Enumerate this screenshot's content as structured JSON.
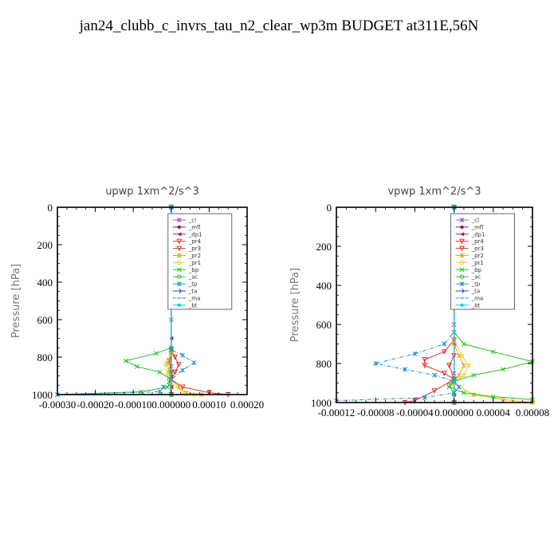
{
  "title": "jan24_clubb_c_invrs_tau_n2_clear_wp3m  BUDGET at311E,56N",
  "chart_data": [
    {
      "type": "line",
      "title": "upwp   1xm^2/s^3",
      "ylabel": "Pressure [hPa]",
      "xlabel": "",
      "xlim": [
        -0.0003,
        0.0002
      ],
      "ylim": [
        1000,
        0
      ],
      "x_tick_labels": [
        "-0.00030",
        "-0.00020",
        "-0.00010",
        "0.000000",
        "0.00010",
        "0.00020"
      ],
      "x_tick_values": [
        -0.0003,
        -0.0002,
        -0.0001,
        0.0,
        0.0001,
        0.0002
      ],
      "y_tick_labels": [
        "0",
        "200",
        "400",
        "600",
        "800",
        "1000"
      ],
      "y_tick_values": [
        0,
        200,
        400,
        600,
        800,
        1000
      ],
      "series": [
        {
          "name": "_cl",
          "color": "#9b59d6",
          "marker": "star",
          "points": [
            [
              0,
              0
            ],
            [
              0,
              600
            ],
            [
              0,
              850
            ],
            [
              0,
              1000
            ]
          ]
        },
        {
          "name": "_mfl",
          "color": "#7a1a7a",
          "marker": "dot",
          "points": [
            [
              0,
              0
            ],
            [
              0,
              500
            ],
            [
              0,
              900
            ],
            [
              0,
              1000
            ]
          ]
        },
        {
          "name": "_dp1",
          "color": "#b0106a",
          "marker": "tri-left",
          "points": [
            [
              0,
              0
            ],
            [
              0,
              700
            ],
            [
              0,
              960
            ],
            [
              0,
              1000
            ]
          ]
        },
        {
          "name": "_pr4",
          "color": "#e23030",
          "marker": "tri-down",
          "points": [
            [
              0,
              0
            ],
            [
              0,
              760
            ],
            [
              1e-05,
              800
            ],
            [
              2e-05,
              840
            ],
            [
              1e-05,
              880
            ],
            [
              0,
              920
            ],
            [
              3e-05,
              960
            ],
            [
              0.0001,
              990
            ],
            [
              0.00015,
              1000
            ]
          ]
        },
        {
          "name": "_pr3",
          "color": "#e23030",
          "marker": "tri-down",
          "points": [
            [
              0,
              0
            ],
            [
              0,
              780
            ],
            [
              -5e-06,
              820
            ],
            [
              0,
              880
            ],
            [
              0,
              1000
            ]
          ]
        },
        {
          "name": "_pr2",
          "color": "#f0a020",
          "marker": "star",
          "points": [
            [
              0,
              0
            ],
            [
              0,
              780
            ],
            [
              -1e-05,
              830
            ],
            [
              -5e-06,
              880
            ],
            [
              0,
              920
            ],
            [
              2e-05,
              960
            ],
            [
              4e-05,
              990
            ],
            [
              8e-05,
              1000
            ]
          ]
        },
        {
          "name": "_pr1",
          "color": "#f0d020",
          "marker": "circle",
          "points": [
            [
              0,
              0
            ],
            [
              0,
              780
            ],
            [
              -1.5e-05,
              840
            ],
            [
              -1e-05,
              890
            ],
            [
              0,
              940
            ],
            [
              3e-05,
              985
            ],
            [
              6e-05,
              1000
            ]
          ]
        },
        {
          "name": "_bp",
          "color": "#20c020",
          "marker": "x",
          "points": [
            [
              0,
              0
            ],
            [
              0,
              750
            ],
            [
              -4e-05,
              780
            ],
            [
              -0.00012,
              820
            ],
            [
              -9e-05,
              850
            ],
            [
              -3e-05,
              880
            ],
            [
              0,
              920
            ],
            [
              -1e-05,
              960
            ],
            [
              -8e-05,
              985
            ],
            [
              -0.0003,
              1000
            ]
          ]
        },
        {
          "name": "_ac",
          "color": "#30c030",
          "marker": "circle",
          "points": [
            [
              0,
              0
            ],
            [
              0,
              880
            ],
            [
              -5e-06,
              920
            ],
            [
              0,
              1000
            ]
          ]
        },
        {
          "name": "_tp",
          "color": "#2090d0",
          "marker": "star",
          "points": [
            [
              0,
              0
            ],
            [
              0,
              760
            ],
            [
              3e-05,
              790
            ],
            [
              6e-05,
              830
            ],
            [
              3e-05,
              870
            ],
            [
              0,
              920
            ],
            [
              -2e-05,
              960
            ],
            [
              -3e-05,
              985
            ],
            [
              -0.0003,
              1000
            ]
          ]
        },
        {
          "name": "_ta",
          "color": "#2040c0",
          "marker": "arrow",
          "points": [
            [
              0,
              0
            ],
            [
              0,
              1000
            ]
          ]
        },
        {
          "name": "_ma",
          "color": "#2090d0",
          "marker": "dash",
          "points": [
            [
              0,
              0
            ],
            [
              0,
              1000
            ]
          ]
        },
        {
          "name": "_bt",
          "color": "#10d0e0",
          "marker": "diamond",
          "points": [
            [
              0,
              0
            ],
            [
              0,
              1000
            ]
          ]
        }
      ]
    },
    {
      "type": "line",
      "title": "vpwp   1xm^2/s^3",
      "ylabel": "Pressure [hPa]",
      "xlabel": "",
      "xlim": [
        -0.00012,
        8e-05
      ],
      "ylim": [
        1000,
        0
      ],
      "x_tick_labels": [
        "-0.00012",
        "-0.00008",
        "-0.00004",
        "0.000000",
        "0.00004",
        "0.00008"
      ],
      "x_tick_values": [
        -0.00012,
        -8e-05,
        -4e-05,
        0.0,
        4e-05,
        8e-05
      ],
      "y_tick_labels": [
        "0",
        "200",
        "400",
        "600",
        "800",
        "1000"
      ],
      "y_tick_values": [
        0,
        200,
        400,
        600,
        800,
        1000
      ],
      "series": [
        {
          "name": "_cl",
          "color": "#9b59d6",
          "marker": "star",
          "points": [
            [
              0,
              0
            ],
            [
              0,
              600
            ],
            [
              0,
              850
            ],
            [
              0,
              1000
            ]
          ]
        },
        {
          "name": "_mfl",
          "color": "#7a1a7a",
          "marker": "dot",
          "points": [
            [
              0,
              0
            ],
            [
              0,
              500
            ],
            [
              0,
              900
            ],
            [
              0,
              1000
            ]
          ]
        },
        {
          "name": "_dp1",
          "color": "#b0106a",
          "marker": "tri-left",
          "points": [
            [
              0,
              0
            ],
            [
              0,
              700
            ],
            [
              0,
              960
            ],
            [
              0,
              1000
            ]
          ]
        },
        {
          "name": "_pr4",
          "color": "#e23030",
          "marker": "tri-down",
          "points": [
            [
              0,
              0
            ],
            [
              0,
              680
            ],
            [
              -1e-05,
              740
            ],
            [
              -3e-05,
              780
            ],
            [
              -3e-05,
              810
            ],
            [
              -1e-05,
              850
            ],
            [
              0,
              880
            ],
            [
              -2e-05,
              940
            ],
            [
              -4e-05,
              990
            ],
            [
              -5e-05,
              1000
            ]
          ]
        },
        {
          "name": "_pr3",
          "color": "#e23030",
          "marker": "tri-down",
          "points": [
            [
              0,
              0
            ],
            [
              0,
              760
            ],
            [
              -5e-06,
              810
            ],
            [
              0,
              880
            ],
            [
              0,
              1000
            ]
          ]
        },
        {
          "name": "_pr2",
          "color": "#f0a020",
          "marker": "star",
          "points": [
            [
              0,
              0
            ],
            [
              0,
              700
            ],
            [
              5e-06,
              760
            ],
            [
              1e-05,
              810
            ],
            [
              5e-06,
              860
            ],
            [
              0,
              900
            ],
            [
              2e-05,
              960
            ],
            [
              5e-05,
              985
            ],
            [
              8e-05,
              1000
            ]
          ]
        },
        {
          "name": "_pr1",
          "color": "#f0d020",
          "marker": "circle",
          "points": [
            [
              0,
              0
            ],
            [
              0,
              680
            ],
            [
              8e-06,
              760
            ],
            [
              1.5e-05,
              810
            ],
            [
              1e-05,
              860
            ],
            [
              0,
              900
            ],
            [
              2e-05,
              960
            ],
            [
              6e-05,
              990
            ],
            [
              8e-05,
              1000
            ]
          ]
        },
        {
          "name": "_bp",
          "color": "#20c020",
          "marker": "x",
          "points": [
            [
              0,
              0
            ],
            [
              0,
              640
            ],
            [
              1e-05,
              700
            ],
            [
              4e-05,
              740
            ],
            [
              8e-05,
              790
            ],
            [
              5e-05,
              830
            ],
            [
              2e-05,
              860
            ],
            [
              0,
              890
            ],
            [
              -5e-06,
              920
            ],
            [
              1e-05,
              950
            ],
            [
              4e-05,
              970
            ],
            [
              8e-05,
              985
            ]
          ]
        },
        {
          "name": "_ac",
          "color": "#30c030",
          "marker": "circle",
          "points": [
            [
              0,
              0
            ],
            [
              0,
              880
            ],
            [
              -5e-06,
              910
            ],
            [
              0,
              960
            ],
            [
              0,
              1000
            ]
          ]
        },
        {
          "name": "_tp",
          "color": "#2090d0",
          "marker": "star",
          "points": [
            [
              0,
              0
            ],
            [
              0,
              640
            ],
            [
              -1e-05,
              700
            ],
            [
              -4e-05,
              750
            ],
            [
              -8e-05,
              800
            ],
            [
              -5e-05,
              830
            ],
            [
              -2e-05,
              860
            ],
            [
              0,
              890
            ],
            [
              5e-06,
              920
            ],
            [
              0,
              950
            ],
            [
              -3e-05,
              975
            ],
            [
              -0.00012,
              990
            ]
          ]
        },
        {
          "name": "_ta",
          "color": "#2040c0",
          "marker": "arrow",
          "points": [
            [
              0,
              0
            ],
            [
              0,
              1000
            ]
          ]
        },
        {
          "name": "_ma",
          "color": "#2090d0",
          "marker": "dash",
          "points": [
            [
              0,
              0
            ],
            [
              0,
              1000
            ]
          ]
        },
        {
          "name": "_bt",
          "color": "#10d0e0",
          "marker": "diamond",
          "points": [
            [
              0,
              0
            ],
            [
              0,
              1000
            ]
          ]
        }
      ]
    }
  ]
}
